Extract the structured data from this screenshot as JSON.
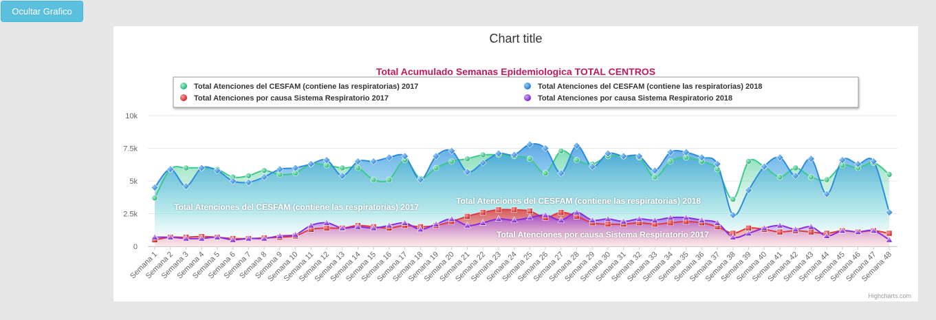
{
  "toolbar": {
    "hide_chart_label": "Ocultar Grafico"
  },
  "credits": "Highcharts.com",
  "chart_data": {
    "type": "area",
    "title": "Chart title",
    "subtitle": "Total Acumulado Semanas Epidemiologica TOTAL CENTROS",
    "xlabel": "",
    "ylabel": "",
    "ylim": [
      0,
      10000
    ],
    "yticks": [
      {
        "value": 0,
        "label": "0"
      },
      {
        "value": 2500,
        "label": "2.5k"
      },
      {
        "value": 5000,
        "label": "5k"
      },
      {
        "value": 7500,
        "label": "7.5k"
      },
      {
        "value": 10000,
        "label": "10k"
      }
    ],
    "grid": true,
    "legend_position": "top",
    "categories": [
      "Semana 1",
      "Semana 2",
      "Semana 3",
      "Semana 4",
      "Semana 5",
      "Semana 6",
      "Semana 7",
      "Semana 8",
      "Semana 9",
      "Semana 10",
      "Semana 11",
      "Semana 12",
      "Semana 13",
      "Semana 14",
      "Semana 15",
      "Semana 16",
      "Semana 17",
      "Semana 18",
      "Semana 19",
      "Semana 20",
      "Semana 21",
      "Semana 22",
      "Semana 23",
      "Semana 24",
      "Semana 25",
      "Semana 26",
      "Semana 27",
      "Semana 28",
      "Semana 29",
      "Semana 30",
      "Semana 31",
      "Semana 32",
      "Semana 33",
      "Semana 34",
      "Semana 35",
      "Semana 36",
      "Semana 37",
      "Semana 38",
      "Semana 39",
      "Semana 40",
      "Semana 41",
      "Semana 42",
      "Semana 43",
      "Semana 44",
      "Semana 45",
      "Semana 46",
      "Semana 47",
      "Semana 48"
    ],
    "series": [
      {
        "name": "Total Atenciones del CESFAM (contiene las respiratorias) 2017",
        "color": "#3cc98e",
        "marker": "circle",
        "values": [
          3700,
          5900,
          6000,
          6000,
          5900,
          5300,
          5400,
          5800,
          5500,
          5600,
          6300,
          6200,
          6000,
          6000,
          5100,
          5100,
          6600,
          5200,
          6000,
          6500,
          6700,
          7000,
          7000,
          6900,
          6700,
          5600,
          7300,
          6600,
          6300,
          6900,
          6900,
          6800,
          5300,
          6500,
          6800,
          6500,
          5900,
          3600,
          6500,
          6100,
          5300,
          6000,
          5300,
          5100,
          6200,
          6000,
          6400,
          5500
        ],
        "data_label": "Total Atenciones del CESFAM (contiene las respiratorias) 2017"
      },
      {
        "name": "Total Atenciones del CESFAM (contiene las respiratorias) 2018",
        "color": "#2b8ce0",
        "marker": "diamond",
        "values": [
          4500,
          5900,
          4600,
          6000,
          5800,
          5000,
          4900,
          5300,
          5900,
          6000,
          6300,
          6600,
          5400,
          6500,
          6500,
          6800,
          6900,
          5100,
          6900,
          7300,
          5700,
          6400,
          7100,
          7000,
          7800,
          7500,
          5600,
          7700,
          6100,
          7100,
          6900,
          6900,
          5800,
          7200,
          7200,
          6800,
          6300,
          2400,
          4300,
          6100,
          6800,
          5400,
          6700,
          4000,
          6600,
          6300,
          6500,
          2600
        ],
        "data_label": "Total Atenciones del CESFAM (contiene las respiratorias) 2018"
      },
      {
        "name": "Total Atenciones por causa Sistema Respiratorio 2017",
        "color": "#e03a3a",
        "marker": "square",
        "values": [
          500,
          700,
          700,
          750,
          700,
          600,
          600,
          650,
          700,
          800,
          1300,
          1400,
          1400,
          1600,
          1500,
          1400,
          1600,
          1500,
          1600,
          1900,
          2300,
          2600,
          2800,
          2800,
          2700,
          2200,
          2600,
          2300,
          1800,
          1700,
          1700,
          1800,
          1700,
          1800,
          1900,
          1800,
          1500,
          1000,
          1400,
          1300,
          1100,
          1200,
          1100,
          1000,
          1200,
          1100,
          1200,
          1000
        ],
        "data_label": "Total Atenciones por causa Sistema Respiratorio 2017"
      },
      {
        "name": "Total Atenciones por causa Sistema Respiratorio 2018",
        "color": "#8a2be2",
        "marker": "triangle",
        "values": [
          700,
          700,
          600,
          600,
          700,
          500,
          600,
          600,
          800,
          900,
          1600,
          1800,
          1400,
          1500,
          1400,
          1600,
          1800,
          1300,
          1700,
          2100,
          1600,
          1800,
          2100,
          2000,
          2200,
          2400,
          2000,
          2600,
          2000,
          2100,
          1900,
          2100,
          2000,
          2200,
          2200,
          2000,
          1800,
          700,
          1000,
          1400,
          1600,
          1300,
          1500,
          800,
          1200,
          1100,
          1200,
          500
        ]
      }
    ]
  }
}
